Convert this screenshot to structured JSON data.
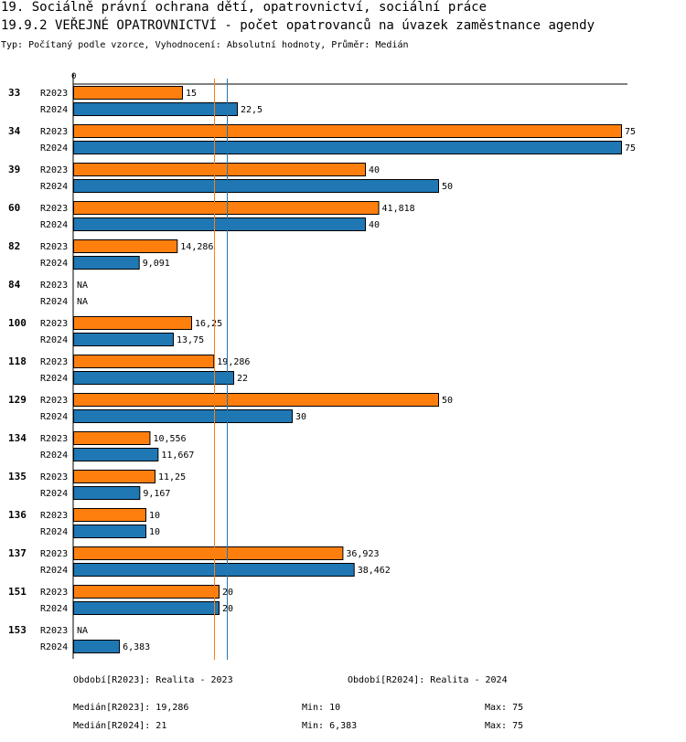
{
  "title_line1": "19. Sociálně právní ochrana dětí, opatrovnictví, sociální práce",
  "title_line2": "19.9.2 VEŘEJNÉ OPATROVNICTVÍ - počet opatrovanců na úvazek zaměstnance agendy",
  "subtitle": "Typ: Počítaný podle vzorce, Vyhodnocení: Absolutní hodnoty, Průměr: Medián",
  "colors": {
    "R2023": "#ff7f0e",
    "R2024": "#1f77b4"
  },
  "chart_data": {
    "type": "bar",
    "orientation": "horizontal",
    "axis_zero_label": "0",
    "xlim": [
      0,
      75
    ],
    "categories": [
      "33",
      "34",
      "39",
      "60",
      "82",
      "84",
      "100",
      "118",
      "129",
      "134",
      "135",
      "136",
      "137",
      "151",
      "153"
    ],
    "series": [
      {
        "name": "R2023",
        "values": [
          15,
          75,
          40,
          41.818,
          14.286,
          null,
          16.25,
          19.286,
          50,
          10.556,
          11.25,
          10,
          36.923,
          20,
          null
        ],
        "labels": [
          "15",
          "75",
          "40",
          "41,818",
          "14,286",
          "NA",
          "16,25",
          "19,286",
          "50",
          "10,556",
          "11,25",
          "10",
          "36,923",
          "20",
          "NA"
        ]
      },
      {
        "name": "R2024",
        "values": [
          22.5,
          75,
          50,
          40,
          9.091,
          null,
          13.75,
          22,
          30,
          11.667,
          9.167,
          10,
          38.462,
          20,
          6.383
        ],
        "labels": [
          "22,5",
          "75",
          "50",
          "40",
          "9,091",
          "NA",
          "13,75",
          "22",
          "30",
          "11,667",
          "9,167",
          "10",
          "38,462",
          "20",
          "6,383"
        ]
      }
    ],
    "median_lines": {
      "R2023": 19.286,
      "R2024": 21
    }
  },
  "footer": {
    "period_2023": "Období[R2023]: Realita - 2023",
    "period_2024": "Období[R2024]: Realita - 2024",
    "median_2023": "Medián[R2023]: 19,286",
    "min_2023": "Min: 10",
    "max_2023": "Max: 75",
    "median_2024": "Medián[R2024]: 21",
    "min_2024": "Min: 6,383",
    "max_2024": "Max: 75"
  }
}
